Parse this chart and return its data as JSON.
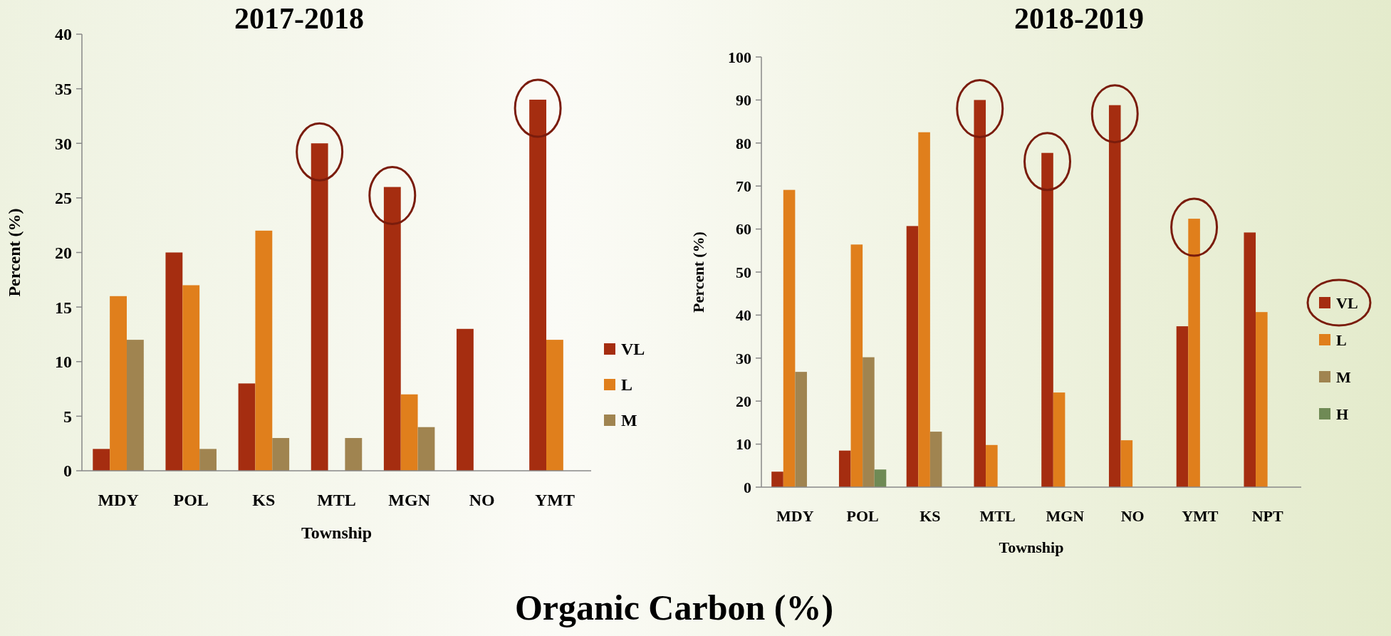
{
  "chart_data": [
    {
      "type": "bar",
      "title": "2017-2018",
      "xlabel": "Township",
      "ylabel": "Percent (%)",
      "categories": [
        "MDY",
        "POL",
        "KS",
        "MTL",
        "MGN",
        "NO",
        "YMT"
      ],
      "series": [
        {
          "name": "VL",
          "color": "#a52d10",
          "values": [
            2,
            20,
            8,
            30,
            26,
            13,
            34
          ]
        },
        {
          "name": "L",
          "color": "#e07f1c",
          "values": [
            16,
            17,
            22,
            null,
            7,
            null,
            12
          ]
        },
        {
          "name": "M",
          "color": "#a08450",
          "values": [
            12,
            2,
            3,
            3,
            4,
            null,
            null
          ]
        }
      ],
      "ylim": [
        0,
        40
      ],
      "yticks": [
        0,
        5,
        10,
        15,
        20,
        25,
        30,
        35,
        40
      ],
      "grid": false,
      "legend": "right",
      "annotations": [
        "Organic Carbon (%)"
      ]
    },
    {
      "type": "bar",
      "title": "2018-2019",
      "xlabel": "Township",
      "ylabel": "Percent (%)",
      "categories": [
        "MDY",
        "POL",
        "KS",
        "MTL",
        "MGN",
        "NO",
        "YMT",
        "NPT"
      ],
      "series": [
        {
          "name": "VL",
          "color": "#a52d10",
          "values": [
            3.6,
            8.5,
            60.7,
            90,
            77.7,
            88.8,
            37.4,
            59.2
          ]
        },
        {
          "name": "L",
          "color": "#e07f1c",
          "values": [
            69.1,
            56.4,
            82.5,
            9.8,
            22,
            10.9,
            62.4,
            40.7
          ]
        },
        {
          "name": "M",
          "color": "#a08450",
          "values": [
            26.8,
            30.2,
            12.9,
            null,
            null,
            null,
            null,
            null
          ]
        },
        {
          "name": "H",
          "color": "#6f8a55",
          "values": [
            null,
            4.1,
            null,
            null,
            null,
            null,
            null,
            null
          ]
        }
      ],
      "ylim": [
        0,
        100
      ],
      "yticks": [
        0,
        10,
        20,
        30,
        40,
        50,
        60,
        70,
        80,
        90,
        100
      ],
      "grid": false,
      "legend": "right"
    }
  ]
}
